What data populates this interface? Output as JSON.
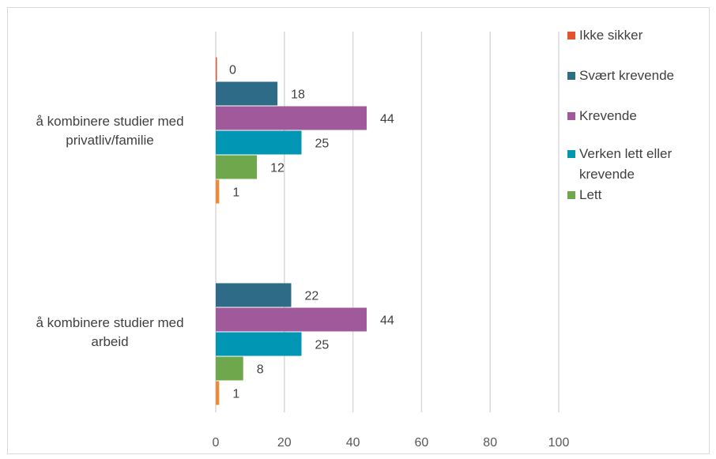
{
  "chart_data": {
    "type": "bar",
    "orientation": "horizontal",
    "title": "",
    "xlabel": "",
    "ylabel": "",
    "xlim": [
      0,
      100
    ],
    "xticks": [
      "0",
      "20",
      "40",
      "60",
      "80",
      "100"
    ],
    "grid": true,
    "legend_position": "right",
    "categories": [
      {
        "label_lines": [
          "å kombinere studier med",
          "privatliv/familie"
        ]
      },
      {
        "label_lines": [
          "å kombinere studier med",
          "arbeid"
        ]
      }
    ],
    "series": [
      {
        "name": "Ikke sikker",
        "color": "#e0552f",
        "values": [
          0,
          null
        ]
      },
      {
        "name": "Svært krevende",
        "color": "#2e6b87",
        "values": [
          18,
          22
        ]
      },
      {
        "name": "Krevende",
        "color": "#a0599b",
        "values": [
          44,
          44
        ]
      },
      {
        "name": "Verken lett eller krevende",
        "color": "#0096b4",
        "values": [
          25,
          25
        ]
      },
      {
        "name": "Lett",
        "color": "#6fa84c",
        "values": [
          12,
          8
        ]
      },
      {
        "name": "",
        "color": "#ee8a3a",
        "values": [
          1,
          1
        ]
      }
    ],
    "legend": [
      {
        "lines": [
          "Ikke sikker"
        ],
        "color": "#e0552f"
      },
      {
        "lines": [
          "Svært krevende"
        ],
        "color": "#2e6b87"
      },
      {
        "lines": [
          "Krevende"
        ],
        "color": "#a0599b"
      },
      {
        "lines": [
          "Verken lett eller",
          "krevende"
        ],
        "color": "#0096b4"
      },
      {
        "lines": [
          "Lett"
        ],
        "color": "#6fa84c"
      }
    ]
  }
}
